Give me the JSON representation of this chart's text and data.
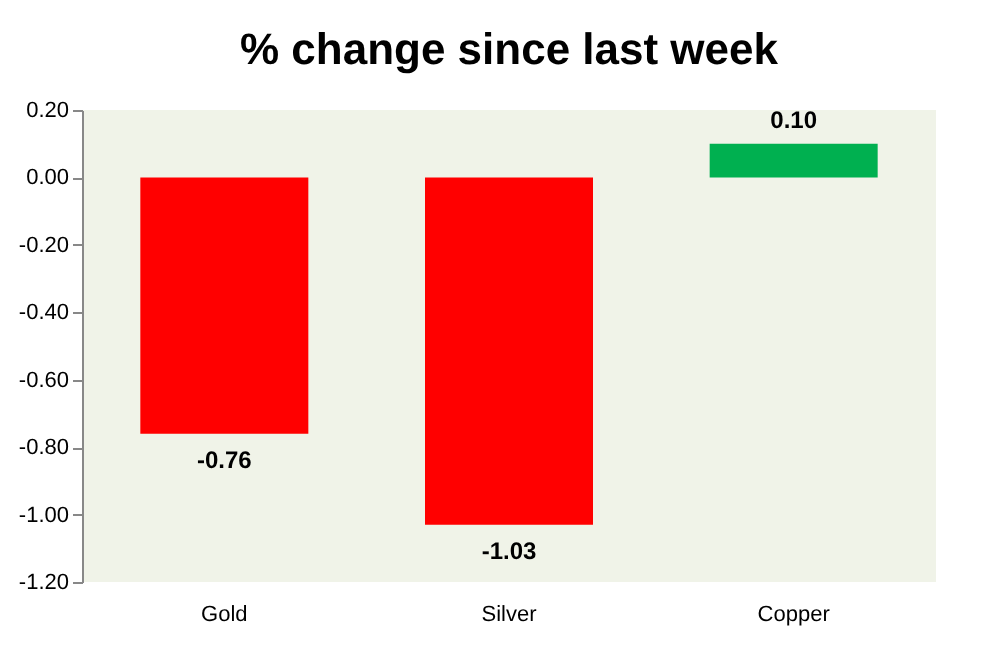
{
  "chart_data": {
    "type": "bar",
    "title": "% change since last week",
    "categories": [
      "Gold",
      "Silver",
      "Copper"
    ],
    "values": [
      -0.76,
      -1.03,
      0.1
    ],
    "colors": [
      "#ff0000",
      "#ff0000",
      "#00b050"
    ],
    "ylim": [
      -1.2,
      0.2
    ],
    "yticks": [
      {
        "value": 0.2,
        "label": "0.20"
      },
      {
        "value": 0,
        "label": "0.00"
      },
      {
        "value": -0.2,
        "label": "-0.20"
      },
      {
        "value": -0.4,
        "label": "-0.40"
      },
      {
        "value": -0.6,
        "label": "-0.60"
      },
      {
        "value": -0.8,
        "label": "-0.80"
      },
      {
        "value": -1.0,
        "label": "-1.00"
      },
      {
        "value": -1.2,
        "label": "-1.20"
      }
    ],
    "value_labels": [
      "-0.76",
      "-1.03",
      "0.10"
    ],
    "grid": false
  }
}
